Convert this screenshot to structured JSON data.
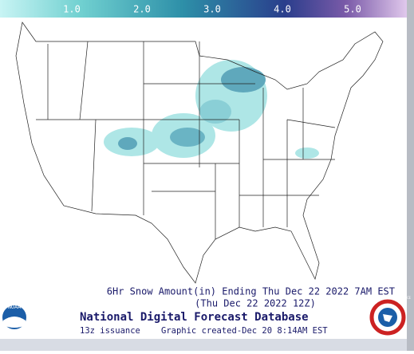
{
  "colorbar": {
    "labels": [
      "1.0",
      "2.0",
      "3.0",
      "4.0",
      "5.0"
    ]
  },
  "caption": {
    "line1": "6Hr Snow Amount(in) Ending Thu Dec 22 2022  7AM EST",
    "line2": "(Thu Dec 22 2022 12Z)"
  },
  "footer": {
    "title": "National Digital Forecast Database",
    "issuance": "13z issuance",
    "created": "Graphic created-Dec 20  8:14AM EST"
  },
  "logos": {
    "noaa": "NOAA",
    "nws": "NATIONAL WEATHER SERVICE"
  }
}
